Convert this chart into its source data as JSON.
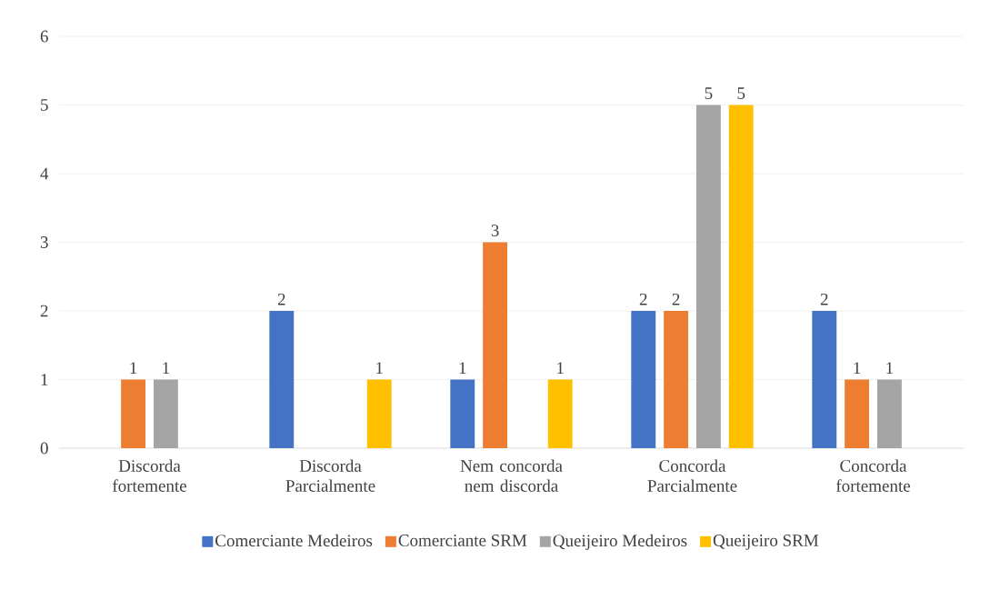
{
  "chart_data": {
    "type": "bar",
    "categories": [
      "Discorda fortemente",
      "Discorda Parcialmente",
      "Nem concorda nem discorda",
      "Concorda Parcialmente",
      "Concorda fortemente"
    ],
    "series": [
      {
        "name": "Comerciante Medeiros",
        "color": "#4472c4",
        "values": [
          0,
          2,
          1,
          2,
          2
        ],
        "value_labels": [
          null,
          "2",
          "1",
          "2",
          "2"
        ]
      },
      {
        "name": "Comerciante SRM",
        "color": "#ed7d31",
        "values": [
          1,
          0,
          3,
          2,
          1
        ],
        "value_labels": [
          "1",
          null,
          "3",
          "2",
          "1"
        ]
      },
      {
        "name": "Queijeiro Medeiros",
        "color": "#a5a5a5",
        "values": [
          1,
          0,
          0,
          5,
          1
        ],
        "value_labels": [
          "1",
          null,
          null,
          "5",
          "1"
        ]
      },
      {
        "name": "Queijeiro SRM",
        "color": "#ffc000",
        "values": [
          0,
          1,
          1,
          5,
          0
        ],
        "value_labels": [
          null,
          "1",
          "1",
          "5",
          null
        ]
      }
    ],
    "ylim": [
      0,
      6
    ],
    "yticks": [
      0,
      1,
      2,
      3,
      4,
      5,
      6
    ],
    "grid": "y",
    "legend": "bottom"
  }
}
